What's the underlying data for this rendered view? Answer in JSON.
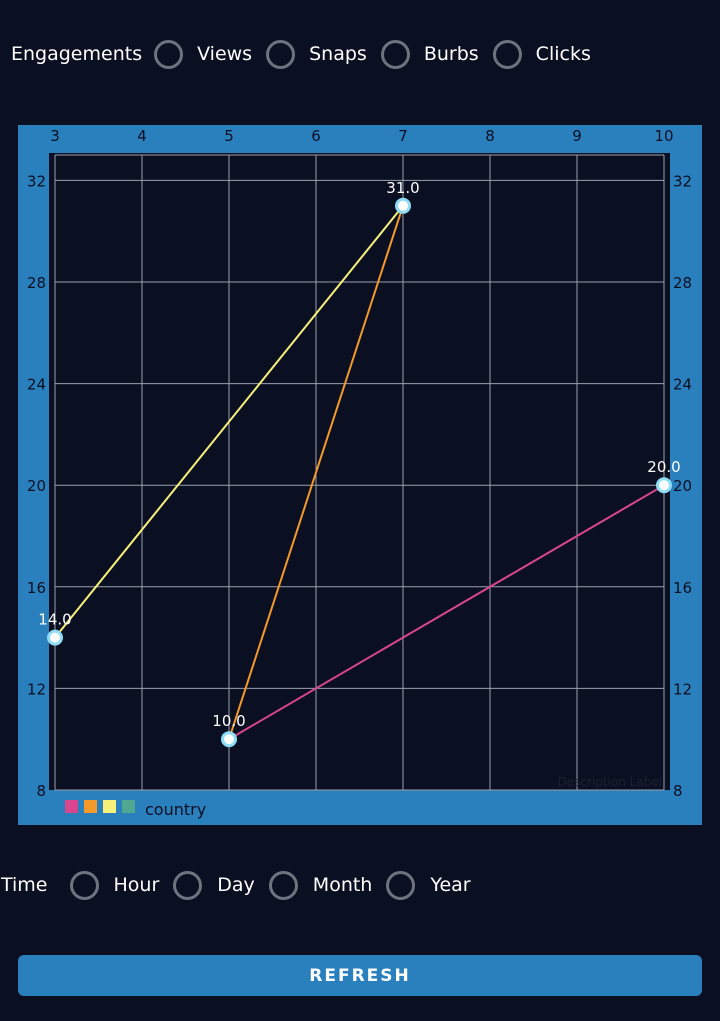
{
  "engagements": {
    "label": "Engagements",
    "options": [
      {
        "label": "Views"
      },
      {
        "label": "Snaps"
      },
      {
        "label": "Burbs"
      },
      {
        "label": "Clicks"
      }
    ]
  },
  "time": {
    "label": "Time",
    "options": [
      {
        "label": "Hour"
      },
      {
        "label": "Day"
      },
      {
        "label": "Month"
      },
      {
        "label": "Year"
      }
    ]
  },
  "refresh_label": "REFRESH",
  "chart_data": {
    "type": "line",
    "title": "",
    "xlabel": "",
    "ylabel": "",
    "xlim": [
      3,
      10
    ],
    "ylim": [
      8,
      33
    ],
    "x_ticks": [
      3,
      4,
      5,
      6,
      7,
      8,
      9,
      10
    ],
    "y_ticks": [
      8,
      12,
      16,
      20,
      24,
      28,
      32
    ],
    "grid": true,
    "description_label": "Description Label",
    "legend": {
      "position": "bottom-left",
      "label": "country",
      "colors": [
        "#d9468f",
        "#f39a2b",
        "#f7f07a",
        "#4fa88f"
      ]
    },
    "points": [
      {
        "x": 3,
        "y": 14,
        "label": "14.0"
      },
      {
        "x": 7,
        "y": 31,
        "label": "31.0"
      },
      {
        "x": 5,
        "y": 10,
        "label": "10.0"
      },
      {
        "x": 10,
        "y": 20,
        "label": "20.0"
      }
    ],
    "segments": [
      {
        "from": 0,
        "to": 1,
        "color": "#f7f07a"
      },
      {
        "from": 1,
        "to": 2,
        "color": "#f39a2b"
      },
      {
        "from": 2,
        "to": 3,
        "color": "#d9468f"
      }
    ],
    "point_color": "#8fdcf5"
  }
}
